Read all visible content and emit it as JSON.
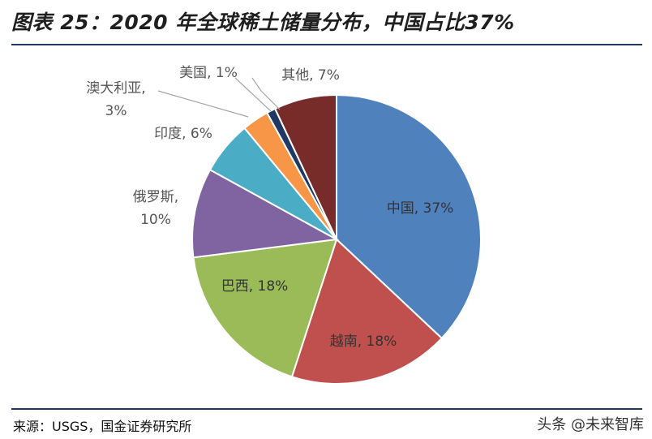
{
  "title": "图表 25：2020 年全球稀土储量分布，中国占比37%",
  "source": "来源：USGS，国金证券研究所",
  "watermark": "头条 @未来智库",
  "chart_data": {
    "type": "pie",
    "categories": [
      "中国",
      "越南",
      "巴西",
      "俄罗斯",
      "印度",
      "澳大利亚",
      "美国",
      "其他"
    ],
    "values": [
      37,
      18,
      18,
      10,
      6,
      3,
      1,
      7
    ],
    "unit": "%",
    "labels": [
      "中国, 37%",
      "越南, 18%",
      "巴西, 18%",
      "俄罗斯, 10%",
      "印度, 6%",
      "澳大利亚, 3%",
      "美国, 1%",
      "其他, 7%"
    ],
    "colors": [
      "#4f81bd",
      "#c0504d",
      "#9bbb59",
      "#8064a2",
      "#4bacc6",
      "#f79646",
      "#1f3864",
      "#772c2a"
    ]
  }
}
